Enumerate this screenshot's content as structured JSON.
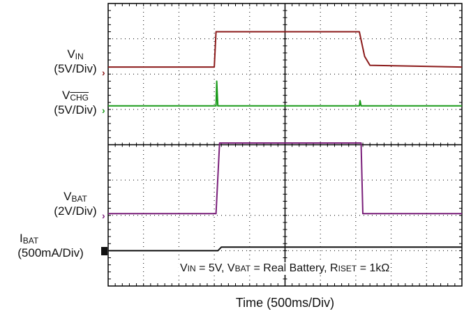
{
  "labels": {
    "vin": {
      "main": "V",
      "sub": "IN",
      "scale": "(5V/Div)"
    },
    "vchg": {
      "main": "V",
      "sub": "CHG",
      "scale": "(5V/Div)"
    },
    "vbat": {
      "main": "V",
      "sub": "BAT",
      "scale": "(2V/Div)"
    },
    "ibat": {
      "main": "I",
      "sub": "BAT",
      "scale": "(500mA/Div)"
    },
    "marker_glyph": "›"
  },
  "conditions": {
    "vin_main": "V",
    "vin_sub": "IN",
    "vin_val": " = 5V, ",
    "vbat_main": "V",
    "vbat_sub": "BAT",
    "vbat_val": " = Real Battery, ",
    "riset_main": "R",
    "riset_sub": "ISET",
    "riset_val": " = 1kΩ"
  },
  "colors": {
    "vin": "#8b1a1a",
    "vchg": "#1a9a1a",
    "vbat": "#7a1f7a",
    "ibat": "#111111",
    "grid": "#000000"
  },
  "chart_data": {
    "type": "line",
    "xlabel": "Time  (500ms/Div)",
    "x_unit": "div",
    "xlim": [
      0,
      10
    ],
    "ylim_div": [
      0,
      8
    ],
    "grid": true,
    "series": [
      {
        "name": "VIN",
        "scale": "5V/Div",
        "ground_div": 6.2,
        "points": [
          [
            0,
            0
          ],
          [
            3.0,
            0
          ],
          [
            3.05,
            1.0
          ],
          [
            7.1,
            1.0
          ],
          [
            7.25,
            0.3
          ],
          [
            7.4,
            0.05
          ],
          [
            10,
            0
          ]
        ]
      },
      {
        "name": "VCHG",
        "scale": "5V/Div",
        "ground_div": 5.1,
        "points": [
          [
            0,
            0
          ],
          [
            3.05,
            0
          ],
          [
            3.07,
            0.7
          ],
          [
            3.1,
            0
          ],
          [
            7.1,
            0
          ],
          [
            7.12,
            0.15
          ],
          [
            7.15,
            0
          ],
          [
            10,
            0
          ]
        ]
      },
      {
        "name": "VBAT",
        "scale": "2V/Div",
        "ground_div": 2.05,
        "points": [
          [
            0,
            0
          ],
          [
            3.05,
            0
          ],
          [
            3.15,
            2.0
          ],
          [
            7.15,
            2.0
          ],
          [
            7.2,
            0
          ],
          [
            10,
            0
          ]
        ]
      },
      {
        "name": "IBAT",
        "scale": "500mA/Div",
        "ground_div": 1.0,
        "points": [
          [
            0,
            0
          ],
          [
            3.1,
            0
          ],
          [
            3.2,
            0.1
          ],
          [
            10,
            0.1
          ]
        ]
      }
    ]
  }
}
